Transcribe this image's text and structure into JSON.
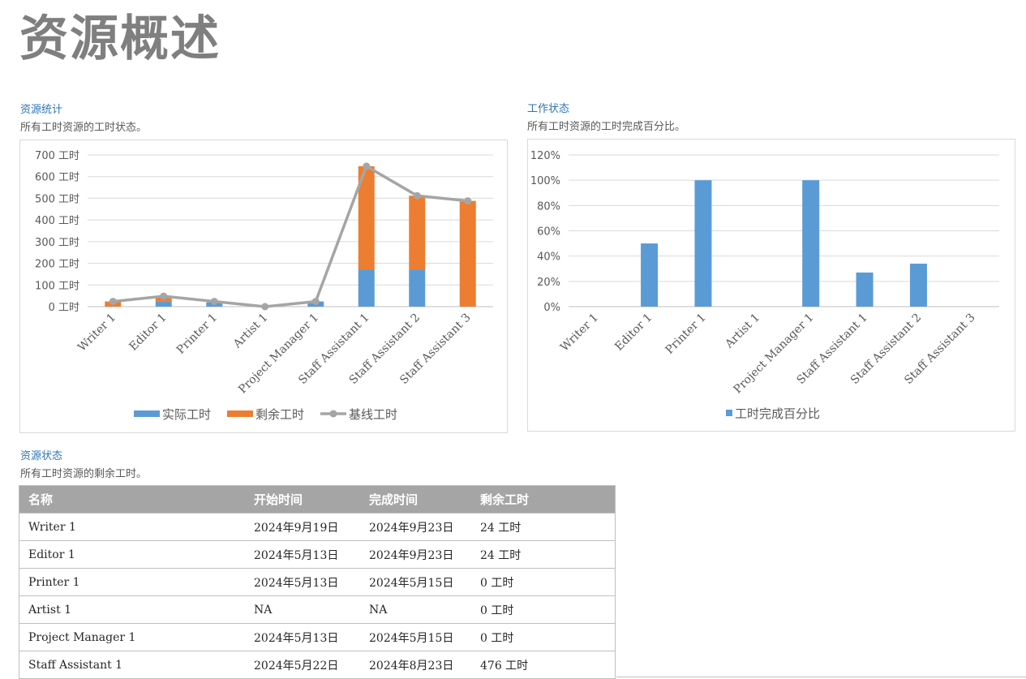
{
  "page": {
    "title": "资源概述"
  },
  "colors": {
    "actual": "#5b9bd5",
    "remaining": "#ed7d31",
    "baseline": "#a5a5a5",
    "pct": "#5b9bd5",
    "header_bg": "#a5a5a5",
    "section_title": "#2e75b6"
  },
  "resource_stats": {
    "title": "资源统计",
    "subtitle": "所有工时资源的工时状态。"
  },
  "work_status": {
    "title": "工作状态",
    "subtitle": "所有工时资源的工时完成百分比。"
  },
  "resource_status": {
    "title": "资源状态",
    "subtitle": "所有工时资源的剩余工时。",
    "columns": [
      "名称",
      "开始时间",
      "完成时间",
      "剩余工时"
    ],
    "rows": [
      [
        "Writer 1",
        "2024年9月19日",
        "2024年9月23日",
        "24 工时"
      ],
      [
        "Editor 1",
        "2024年5月13日",
        "2024年9月23日",
        "24 工时"
      ],
      [
        "Printer 1",
        "2024年5月13日",
        "2024年5月15日",
        "0 工时"
      ],
      [
        "Artist 1",
        "NA",
        "NA",
        "0 工时"
      ],
      [
        "Project Manager 1",
        "2024年5月13日",
        "2024年5月15日",
        "0 工时"
      ],
      [
        "Staff Assistant 1",
        "2024年5月22日",
        "2024年8月23日",
        "476 工时"
      ]
    ]
  },
  "chart_data": [
    {
      "type": "bar",
      "stacked": true,
      "categories": [
        "Writer 1",
        "Editor 1",
        "Printer 1",
        "Artist 1",
        "Project Manager 1",
        "Staff Assistant 1",
        "Staff Assistant 2",
        "Staff Assistant 3"
      ],
      "series": [
        {
          "name": "实际工时",
          "kind": "bar",
          "values": [
            0,
            24,
            20,
            0,
            24,
            172,
            172,
            0
          ]
        },
        {
          "name": "剩余工时",
          "kind": "bar",
          "values": [
            24,
            24,
            0,
            0,
            0,
            476,
            340,
            488
          ]
        },
        {
          "name": "基线工时",
          "kind": "line",
          "values": [
            24,
            48,
            24,
            0,
            24,
            648,
            512,
            488
          ]
        }
      ],
      "ylim": [
        0,
        700
      ],
      "yticks": [
        0,
        100,
        200,
        300,
        400,
        500,
        600,
        700
      ],
      "ytick_suffix": " 工时",
      "grid": true,
      "legend": "bottom"
    },
    {
      "type": "bar",
      "categories": [
        "Writer 1",
        "Editor 1",
        "Printer 1",
        "Artist 1",
        "Project Manager 1",
        "Staff Assistant 1",
        "Staff Assistant 2",
        "Staff Assistant 3"
      ],
      "series": [
        {
          "name": "工时完成百分比",
          "values": [
            0,
            50,
            100,
            0,
            100,
            27,
            34,
            0
          ]
        }
      ],
      "ylim": [
        0,
        120
      ],
      "yticks": [
        0,
        20,
        40,
        60,
        80,
        100,
        120
      ],
      "ytick_suffix": "%",
      "grid": true,
      "legend": "bottom"
    }
  ]
}
